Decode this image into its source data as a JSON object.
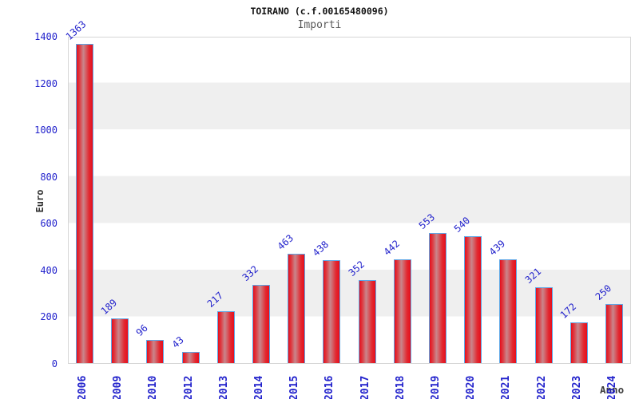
{
  "header": {
    "title": "TOIRANO (c.f.00165480096)",
    "subtitle": "Importi"
  },
  "axes": {
    "y_label": "Euro",
    "x_label": "Anno"
  },
  "colors": {
    "label_blue": "#2222cc",
    "bar_red_edge": "#e60e1c",
    "bar_red_center": "#c9868c",
    "bar_border_blue": "#5ea7e6",
    "band_gray": "#efefef",
    "plot_border_gray": "#d6d6d6",
    "subtitle_gray": "#5a5a5a"
  },
  "chart_data": {
    "type": "bar",
    "title": "TOIRANO (c.f.00165480096)",
    "subtitle": "Importi",
    "xlabel": "Anno",
    "ylabel": "Euro",
    "categories": [
      "2006",
      "2009",
      "2010",
      "2012",
      "2013",
      "2014",
      "2015",
      "2016",
      "2017",
      "2018",
      "2019",
      "2020",
      "2021",
      "2022",
      "2023",
      "2024"
    ],
    "values": [
      1363,
      189,
      96,
      43,
      217,
      332,
      463,
      438,
      352,
      442,
      553,
      540,
      439,
      321,
      172,
      250
    ],
    "ylim": [
      0,
      1400
    ],
    "ytick_step": 200,
    "grid": "alternating horizontal bands every 200 units",
    "legend_position": "none",
    "bar_value_labels_rotated_deg": -42,
    "x_labels_rotated_deg": -90
  }
}
